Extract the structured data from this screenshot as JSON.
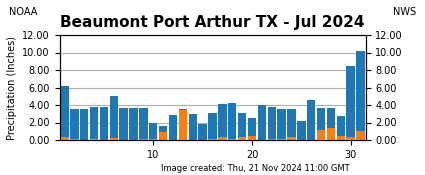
{
  "chart_data": {
    "type": "bar",
    "title": "Beaumont Port Arthur TX - Jul 2024",
    "y_label": "Precipitation (Inches)",
    "annotations": [
      "Image created: Thu, 21 Nov 2024 11:00 GMT",
      "NOAA",
      "NWS"
    ],
    "x": [
      1,
      2,
      3,
      4,
      5,
      6,
      7,
      8,
      9,
      10,
      11,
      12,
      13,
      14,
      15,
      16,
      17,
      18,
      19,
      20,
      21,
      22,
      23,
      24,
      25,
      26,
      27,
      28,
      29,
      30,
      31
    ],
    "series": [
      {
        "values": [
          6.2,
          3.5,
          3.5,
          3.8,
          3.8,
          5.0,
          3.7,
          3.7,
          3.7,
          2.0,
          1.6,
          2.9,
          3.5,
          3.0,
          1.85,
          3.1,
          4.15,
          4.2,
          3.1,
          2.5,
          4.0,
          3.8,
          3.6,
          3.6,
          2.2,
          4.6,
          3.7,
          3.7,
          2.7,
          8.5,
          10.2
        ]
      },
      {
        "values": [
          0.38,
          0.1,
          0.05,
          0.08,
          0.05,
          0.28,
          0.05,
          0.05,
          0.08,
          0.08,
          0.9,
          0.05,
          3.4,
          0.05,
          0.05,
          0.08,
          0.3,
          0.1,
          0.3,
          0.5,
          0.05,
          0.1,
          0.1,
          0.3,
          0.05,
          0.05,
          1.2,
          1.4,
          0.5,
          0.3,
          1.0
        ]
      }
    ],
    "xlim": [
      0.5,
      31.5
    ],
    "xticks": [
      10,
      20,
      30
    ],
    "ylim": [
      0,
      12.0
    ],
    "yticks": [
      {
        "value": 0.0,
        "label": "0.00"
      },
      {
        "value": 2.0,
        "label": "2.00"
      },
      {
        "value": 4.0,
        "label": "4.00"
      },
      {
        "value": 6.0,
        "label": "6.00"
      },
      {
        "value": 8.0,
        "label": "8.00"
      },
      {
        "value": 10.0,
        "label": "10.00"
      },
      {
        "value": 12.0,
        "label": "12.00"
      }
    ],
    "y2lim": [
      0,
      12.0
    ],
    "y2ticks": [
      {
        "value": 0.0,
        "label": "0.00"
      },
      {
        "value": 2.0,
        "label": "2.00"
      },
      {
        "value": 4.0,
        "label": "4.00"
      },
      {
        "value": 6.0,
        "label": "6.00"
      },
      {
        "value": 8.0,
        "label": "8.00"
      },
      {
        "value": 10.0,
        "label": "10.00"
      },
      {
        "value": 12.0,
        "label": "12.00"
      }
    ],
    "grid": "y"
  }
}
